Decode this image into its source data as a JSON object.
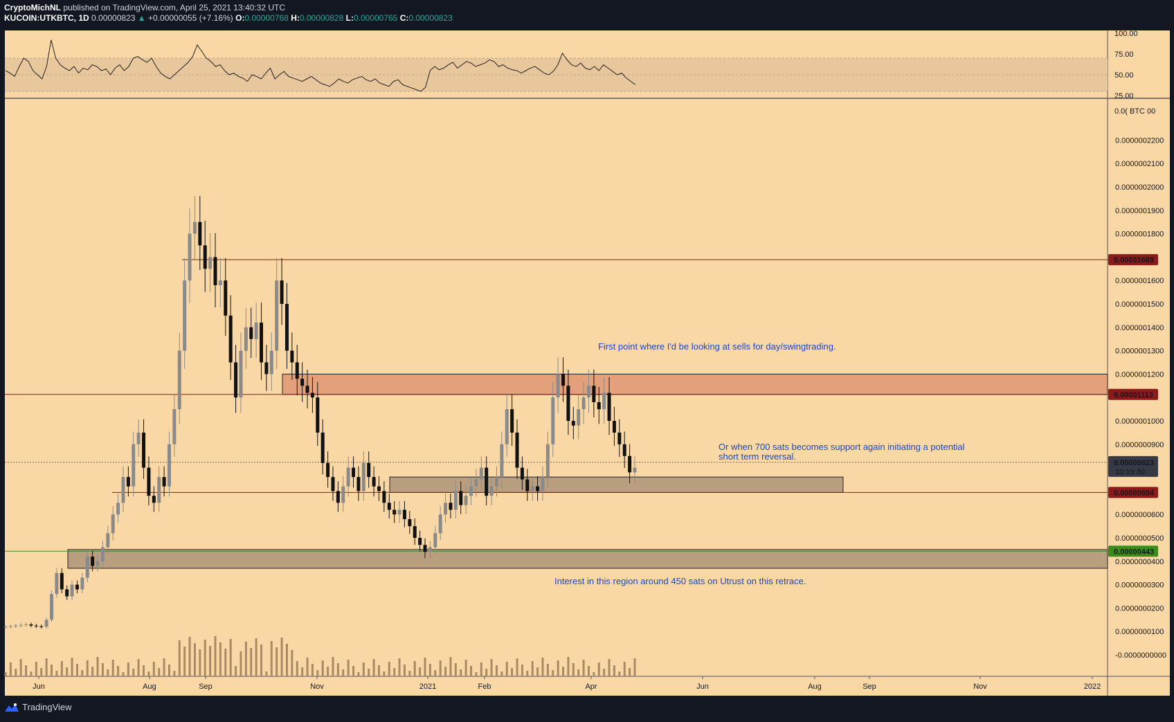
{
  "header": {
    "author": "CryptoMichNL",
    "published": "published on TradingView.com, April 25, 2021 13:40:32 UTC",
    "symbol": "KUCOIN:UTKBTC, 1D",
    "last": "0.00000823",
    "change": "+0.00000055 (+7.16%)",
    "o_label": "O:",
    "o": "0.00000768",
    "h_label": "H:",
    "h": "0.00000828",
    "l_label": "L:",
    "l": "0.00000765",
    "c_label": "C:",
    "c": "0.00000823"
  },
  "footer": {
    "brand": "TradingView",
    "icon": "tradingview-logo-icon"
  },
  "colors": {
    "background": "#f9d8a5",
    "resistance_zone": "#e3a07b",
    "support_zone": "#b99e7f",
    "level_line": "#8b1a1a",
    "green_line": "#3c8b1c",
    "note_text": "#1848cc",
    "rsi_band": "#e8c79d"
  },
  "annotations": {
    "sell_note": "First point where I'd be looking at sells for day/swingtrading.",
    "support_note": "Or when 700 sats becomes support again initiating a potential\nshort term reversal.",
    "interest_note": "Interest in this region around 450 sats on Utrust on this retrace."
  },
  "chart_data": [
    {
      "type": "line",
      "name": "RSI",
      "y_ticks": [
        "100.00",
        "75.00",
        "50.00",
        "25.00"
      ],
      "band": [
        30,
        70
      ],
      "ylim": [
        25,
        100
      ],
      "series": [
        {
          "values": [
            55,
            52,
            48,
            60,
            70,
            66,
            55,
            50,
            45,
            60,
            92,
            70,
            62,
            58,
            55,
            60,
            52,
            58,
            56,
            62,
            60,
            55,
            57,
            50,
            58,
            62,
            55,
            60,
            70,
            72,
            68,
            65,
            70,
            60,
            52,
            48,
            45,
            50,
            55,
            60,
            65,
            72,
            86,
            78,
            70,
            66,
            60,
            62,
            55,
            50,
            52,
            48,
            46,
            42,
            50,
            48,
            45,
            52,
            58,
            45,
            50,
            54,
            48,
            46,
            44,
            42,
            45,
            48,
            44,
            40,
            38,
            36,
            40,
            45,
            42,
            40,
            44,
            46,
            48,
            44,
            42,
            45,
            40,
            38,
            36,
            42,
            44,
            38,
            36,
            34,
            32,
            30,
            35,
            55,
            60,
            56,
            58,
            62,
            65,
            58,
            62,
            66,
            64,
            60,
            62,
            64,
            68,
            66,
            60,
            62,
            58,
            56,
            55,
            52,
            55,
            58,
            60,
            56,
            52,
            50,
            54,
            62,
            76,
            68,
            62,
            60,
            64,
            58,
            56,
            60,
            55,
            62,
            58,
            54,
            50,
            52,
            46,
            42,
            38
          ]
        }
      ]
    },
    {
      "type": "candlestick",
      "name": "KUCOIN:UTKBTC",
      "x_ticks": [
        "Jun",
        "Aug",
        "Sep",
        "Nov",
        "2021",
        "Feb",
        "Apr",
        "Jun",
        "Aug",
        "Sep",
        "Nov",
        "2022"
      ],
      "y_unit": "BTC",
      "y_ticks": [
        "0.0000002200",
        "0.0000002100",
        "0.0000002000",
        "0.0000001900",
        "0.0000001800",
        "0.0000001600",
        "0.0000001500",
        "0.0000001400",
        "0.0000001300",
        "0.0000001200",
        "0.0000001000",
        "0.0000000900",
        "0.0000000600",
        "0.0000000500",
        "0.0000000400",
        "0.0000000300",
        "0.0000000200",
        "0.0000000100",
        "-0.0000000000"
      ],
      "ylim_sats": [
        0,
        2300
      ],
      "levels": [
        {
          "label": "0.00001689",
          "sats": 1689,
          "color": "#8b1a1a"
        },
        {
          "label": "0.00001113",
          "sats": 1113,
          "color": "#8b1a1a"
        },
        {
          "label": "0.00000694",
          "sats": 694,
          "color": "#8b1a1a"
        },
        {
          "label": "0.00000443",
          "sats": 443,
          "color": "#3c8b1c"
        }
      ],
      "last_price": {
        "label": "0.00000823",
        "countdown": "10:19:30",
        "sats": 823
      },
      "zones": [
        {
          "name": "resistance",
          "from_sats": 1113,
          "to_sats": 1200
        },
        {
          "name": "support-700",
          "from_sats": 694,
          "to_sats": 760
        },
        {
          "name": "interest-450",
          "from_sats": 370,
          "to_sats": 450
        }
      ],
      "close_sats": [
        120,
        122,
        125,
        128,
        130,
        125,
        122,
        120,
        150,
        260,
        350,
        280,
        250,
        300,
        280,
        330,
        420,
        380,
        400,
        460,
        520,
        600,
        650,
        760,
        720,
        900,
        950,
        800,
        680,
        650,
        760,
        720,
        900,
        1050,
        1300,
        1600,
        1800,
        1850,
        1750,
        1650,
        1700,
        1580,
        1600,
        1450,
        1250,
        1100,
        1300,
        1400,
        1350,
        1420,
        1250,
        1200,
        1300,
        1600,
        1500,
        1300,
        1250,
        1180,
        1150,
        1120,
        1100,
        950,
        820,
        760,
        700,
        650,
        720,
        800,
        760,
        700,
        820,
        760,
        720,
        700,
        650,
        620,
        600,
        620,
        580,
        550,
        500,
        470,
        440,
        460,
        520,
        600,
        650,
        620,
        700,
        640,
        680,
        720,
        750,
        800,
        680,
        720,
        760,
        900,
        1050,
        950,
        800,
        750,
        700,
        720,
        700,
        760,
        900,
        1100,
        1200,
        1150,
        1000,
        980,
        1050,
        1100,
        1150,
        1080,
        1050,
        1120,
        1000,
        950,
        900,
        850,
        780,
        800
      ]
    }
  ]
}
